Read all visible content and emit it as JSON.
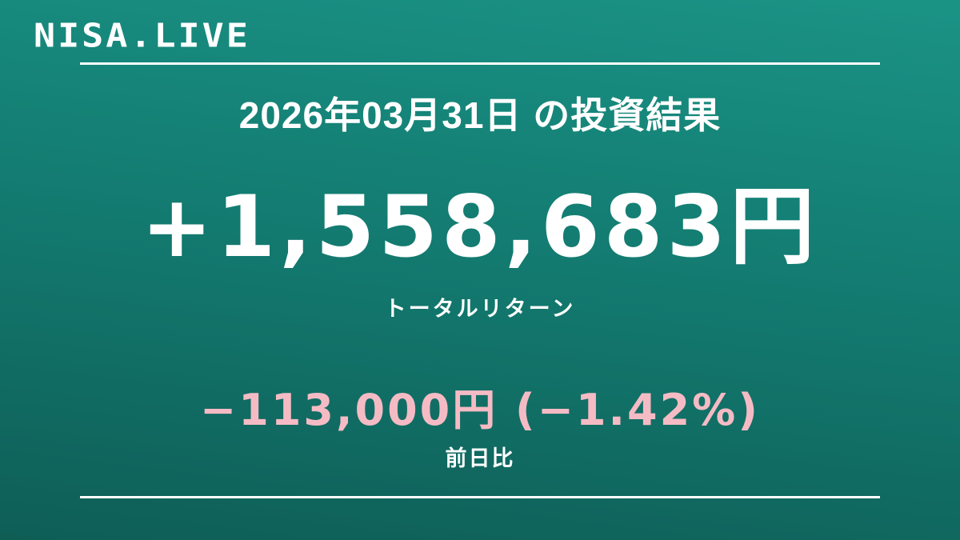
{
  "brand": {
    "logo": "NISA.LIVE"
  },
  "header": {
    "title": "2026年03月31日 の投資結果"
  },
  "total_return": {
    "value": "+1,558,683円",
    "label": "トータルリターン"
  },
  "daily_change": {
    "value": "−113,000円 (−1.42%)",
    "label": "前日比"
  },
  "colors": {
    "bg-top": "#1a9385",
    "bg-mid": "#137a70",
    "bg-bottom": "#0e5e56",
    "text": "#ffffff",
    "negative": "#f5bbc4"
  }
}
